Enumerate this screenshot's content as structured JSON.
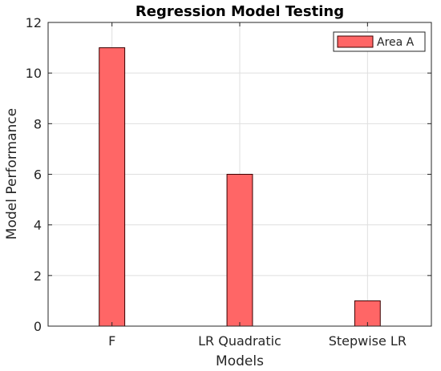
{
  "chart_data": {
    "type": "bar",
    "title": "Regression Model Testing",
    "xlabel": "Models",
    "ylabel": "Model Performance",
    "categories": [
      "F",
      "LR Quadratic",
      "Stepwise LR"
    ],
    "series": [
      {
        "name": "Area A",
        "values": [
          11,
          6,
          1
        ],
        "color": "#ff6666",
        "edge_color": "#3a0000"
      }
    ],
    "ylim": [
      0,
      12
    ],
    "yticks": [
      0,
      2,
      4,
      6,
      8,
      10,
      12
    ],
    "grid": true,
    "legend_position": "top-right"
  }
}
